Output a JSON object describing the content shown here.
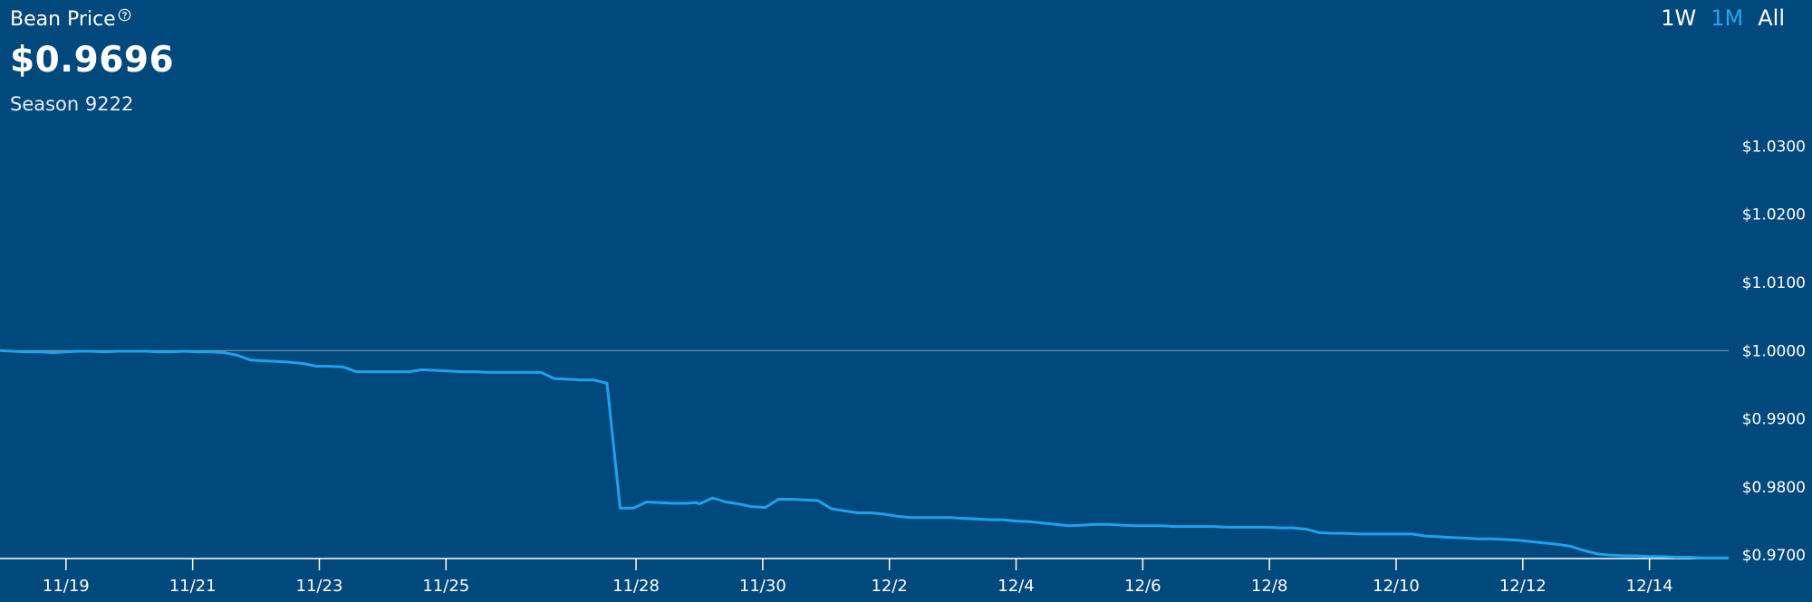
{
  "header": {
    "title": "Bean Price",
    "price": "$0.9696",
    "season": "Season 9222"
  },
  "time_ranges": [
    {
      "label": "1W",
      "active": false
    },
    {
      "label": "1M",
      "active": true
    },
    {
      "label": "All",
      "active": false
    }
  ],
  "colors": {
    "background": "#01487d",
    "line": "#1ea2ee",
    "active_range": "#2aa3ee",
    "reference_line": "#8f9dad"
  },
  "chart_data": {
    "type": "line",
    "title": "Bean Price",
    "xlabel": "",
    "ylabel": "",
    "x_ticks": [
      "11/19",
      "11/21",
      "11/23",
      "11/25",
      "11/28",
      "11/30",
      "12/2",
      "12/4",
      "12/6",
      "12/8",
      "12/10",
      "12/12",
      "12/14"
    ],
    "y_ticks": [
      "$0.9700",
      "$0.9800",
      "$0.9900",
      "$1.0000",
      "$1.0100",
      "$1.0200",
      "$1.0300"
    ],
    "ylim": [
      0.9695,
      1.0315
    ],
    "reference_value": 1.0,
    "grid": false,
    "x_domain": [
      "11/17/23:00",
      "12/15/06:00"
    ],
    "series": [
      {
        "x": [
          "11/17/23:00",
          "11/18/04:00",
          "11/18/09:00",
          "11/18/14:00",
          "11/18/19:00",
          "11/19/00:00",
          "11/19/05:00",
          "11/19/10:00",
          "11/19/15:00",
          "11/19/20:00",
          "11/20/01:00",
          "11/20/06:00",
          "11/20/11:00",
          "11/20/16:00",
          "11/20/21:00",
          "11/21/02:00",
          "11/21/07:00",
          "11/21/12:00",
          "11/21/17:00",
          "11/21/22:00",
          "11/22/03:00",
          "11/22/08:00",
          "11/22/13:00",
          "11/22/18:00",
          "11/22/23:00",
          "11/23/04:00",
          "11/23/09:00",
          "11/23/14:00",
          "11/23/19:00",
          "11/24/00:00",
          "11/24/05:00",
          "11/24/10:00",
          "11/24/15:00",
          "11/24/20:00",
          "11/25/01:00",
          "11/25/06:00",
          "11/25/11:00",
          "11/25/16:00",
          "11/25/21:00",
          "11/26/02:00",
          "11/26/07:00",
          "11/26/12:00",
          "11/26/17:00",
          "11/26/22:00",
          "11/27/03:00",
          "11/27/08:00",
          "11/27/13:00",
          "11/27/18:00",
          "11/27/23:00",
          "11/28/04:00",
          "11/28/09:00",
          "11/28/14:00",
          "11/28/19:00",
          "11/28/23:00",
          "11/29/00:00",
          "11/29/05:00",
          "11/29/10:00",
          "11/29/15:00",
          "11/29/20:00",
          "11/30/01:00",
          "11/30/06:00",
          "11/30/11:00",
          "11/30/16:00",
          "11/30/21:00",
          "12/01/02:00",
          "12/01/07:00",
          "12/01/12:00",
          "12/01/17:00",
          "12/01/22:00",
          "12/02/03:00",
          "12/02/08:00",
          "12/02/13:00",
          "12/02/18:00",
          "12/02/23:00",
          "12/03/04:00",
          "12/03/09:00",
          "12/03/14:00",
          "12/03/19:00",
          "12/04/00:00",
          "12/04/05:00",
          "12/04/10:00",
          "12/04/15:00",
          "12/04/20:00",
          "12/05/01:00",
          "12/05/06:00",
          "12/05/11:00",
          "12/05/16:00",
          "12/05/21:00",
          "12/06/02:00",
          "12/06/07:00",
          "12/06/12:00",
          "12/06/17:00",
          "12/06/22:00",
          "12/07/03:00",
          "12/07/08:00",
          "12/07/13:00",
          "12/07/18:00",
          "12/07/23:00",
          "12/08/04:00",
          "12/08/09:00",
          "12/08/14:00",
          "12/08/19:00",
          "12/09/00:00",
          "12/09/05:00",
          "12/09/10:00",
          "12/09/15:00",
          "12/09/20:00",
          "12/10/01:00",
          "12/10/06:00",
          "12/10/11:00",
          "12/10/16:00",
          "12/10/21:00",
          "12/11/02:00",
          "12/11/07:00",
          "12/11/12:00",
          "12/11/17:00",
          "12/11/22:00",
          "12/12/03:00",
          "12/12/08:00",
          "12/12/13:00",
          "12/12/18:00",
          "12/12/23:00",
          "12/13/04:00",
          "12/13/09:00",
          "12/13/14:00",
          "12/13/19:00",
          "12/14/00:00",
          "12/14/05:00",
          "12/14/10:00",
          "12/14/15:00",
          "12/14/20:00",
          "12/15/01:00",
          "12/15/06:00"
        ],
        "values": [
          1.0,
          0.9999,
          0.9998,
          0.9998,
          0.9997,
          0.9998,
          0.9999,
          0.9999,
          0.9998,
          0.9999,
          0.9999,
          0.9999,
          0.9998,
          0.9998,
          0.9999,
          0.9998,
          0.9998,
          0.9997,
          0.9993,
          0.9986,
          0.9985,
          0.9984,
          0.9983,
          0.9981,
          0.9977,
          0.9977,
          0.9976,
          0.9969,
          0.9969,
          0.9969,
          0.9969,
          0.9969,
          0.9972,
          0.9971,
          0.997,
          0.9969,
          0.9969,
          0.9968,
          0.9968,
          0.9968,
          0.9968,
          0.9968,
          0.9959,
          0.9958,
          0.9957,
          0.9957,
          0.9952,
          0.9769,
          0.9769,
          0.9778,
          0.9777,
          0.9776,
          0.9776,
          0.9777,
          0.9775,
          0.9784,
          0.9778,
          0.9775,
          0.9771,
          0.977,
          0.9782,
          0.9782,
          0.9781,
          0.978,
          0.9768,
          0.9765,
          0.9762,
          0.9762,
          0.976,
          0.9757,
          0.9755,
          0.9755,
          0.9755,
          0.9755,
          0.9754,
          0.9753,
          0.9752,
          0.9752,
          0.975,
          0.9749,
          0.9747,
          0.9745,
          0.9743,
          0.9744,
          0.9745,
          0.9745,
          0.9744,
          0.9743,
          0.9743,
          0.9743,
          0.9742,
          0.9742,
          0.9742,
          0.9742,
          0.9741,
          0.9741,
          0.9741,
          0.9741,
          0.974,
          0.974,
          0.9738,
          0.9733,
          0.9732,
          0.9732,
          0.9731,
          0.9731,
          0.9731,
          0.9731,
          0.9731,
          0.9728,
          0.9727,
          0.9726,
          0.9725,
          0.9724,
          0.9724,
          0.9723,
          0.9722,
          0.972,
          0.9718,
          0.9716,
          0.9713,
          0.9707,
          0.9702,
          0.97,
          0.9699,
          0.9699,
          0.9698,
          0.9698,
          0.9697,
          0.9697,
          0.9696,
          0.9696,
          0.9696
        ]
      }
    ]
  }
}
